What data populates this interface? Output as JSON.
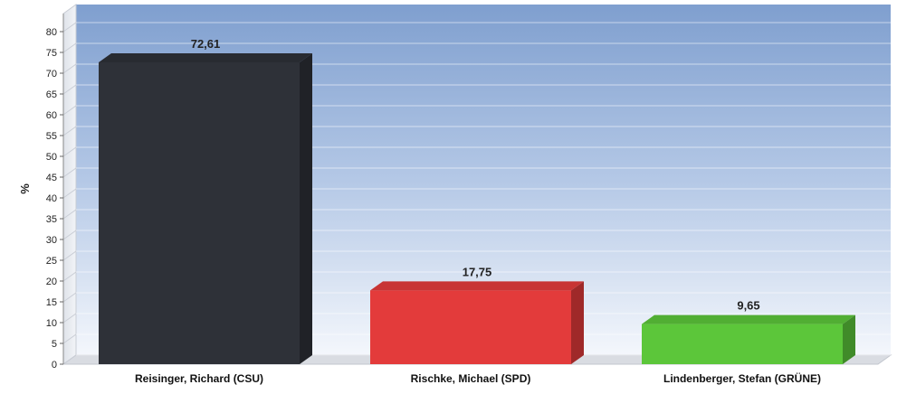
{
  "chart_data": {
    "type": "bar",
    "title": "",
    "xlabel": "",
    "ylabel": "%",
    "ylim": [
      0,
      80
    ],
    "yticks": [
      0,
      5,
      10,
      15,
      20,
      25,
      30,
      35,
      40,
      45,
      50,
      55,
      60,
      65,
      70,
      75,
      80
    ],
    "categories": [
      "Reisinger, Richard (CSU)",
      "Rischke, Michael (SPD)",
      "Lindenberger, Stefan (GRÜNE)"
    ],
    "values": [
      72.61,
      17.75,
      9.65
    ],
    "value_labels": [
      "72,61",
      "17,75",
      "9,65"
    ],
    "colors": [
      "#2e3138",
      "#e33b3b",
      "#5cc63a"
    ],
    "grid": true,
    "legend": "none",
    "style": "3d-bars"
  }
}
